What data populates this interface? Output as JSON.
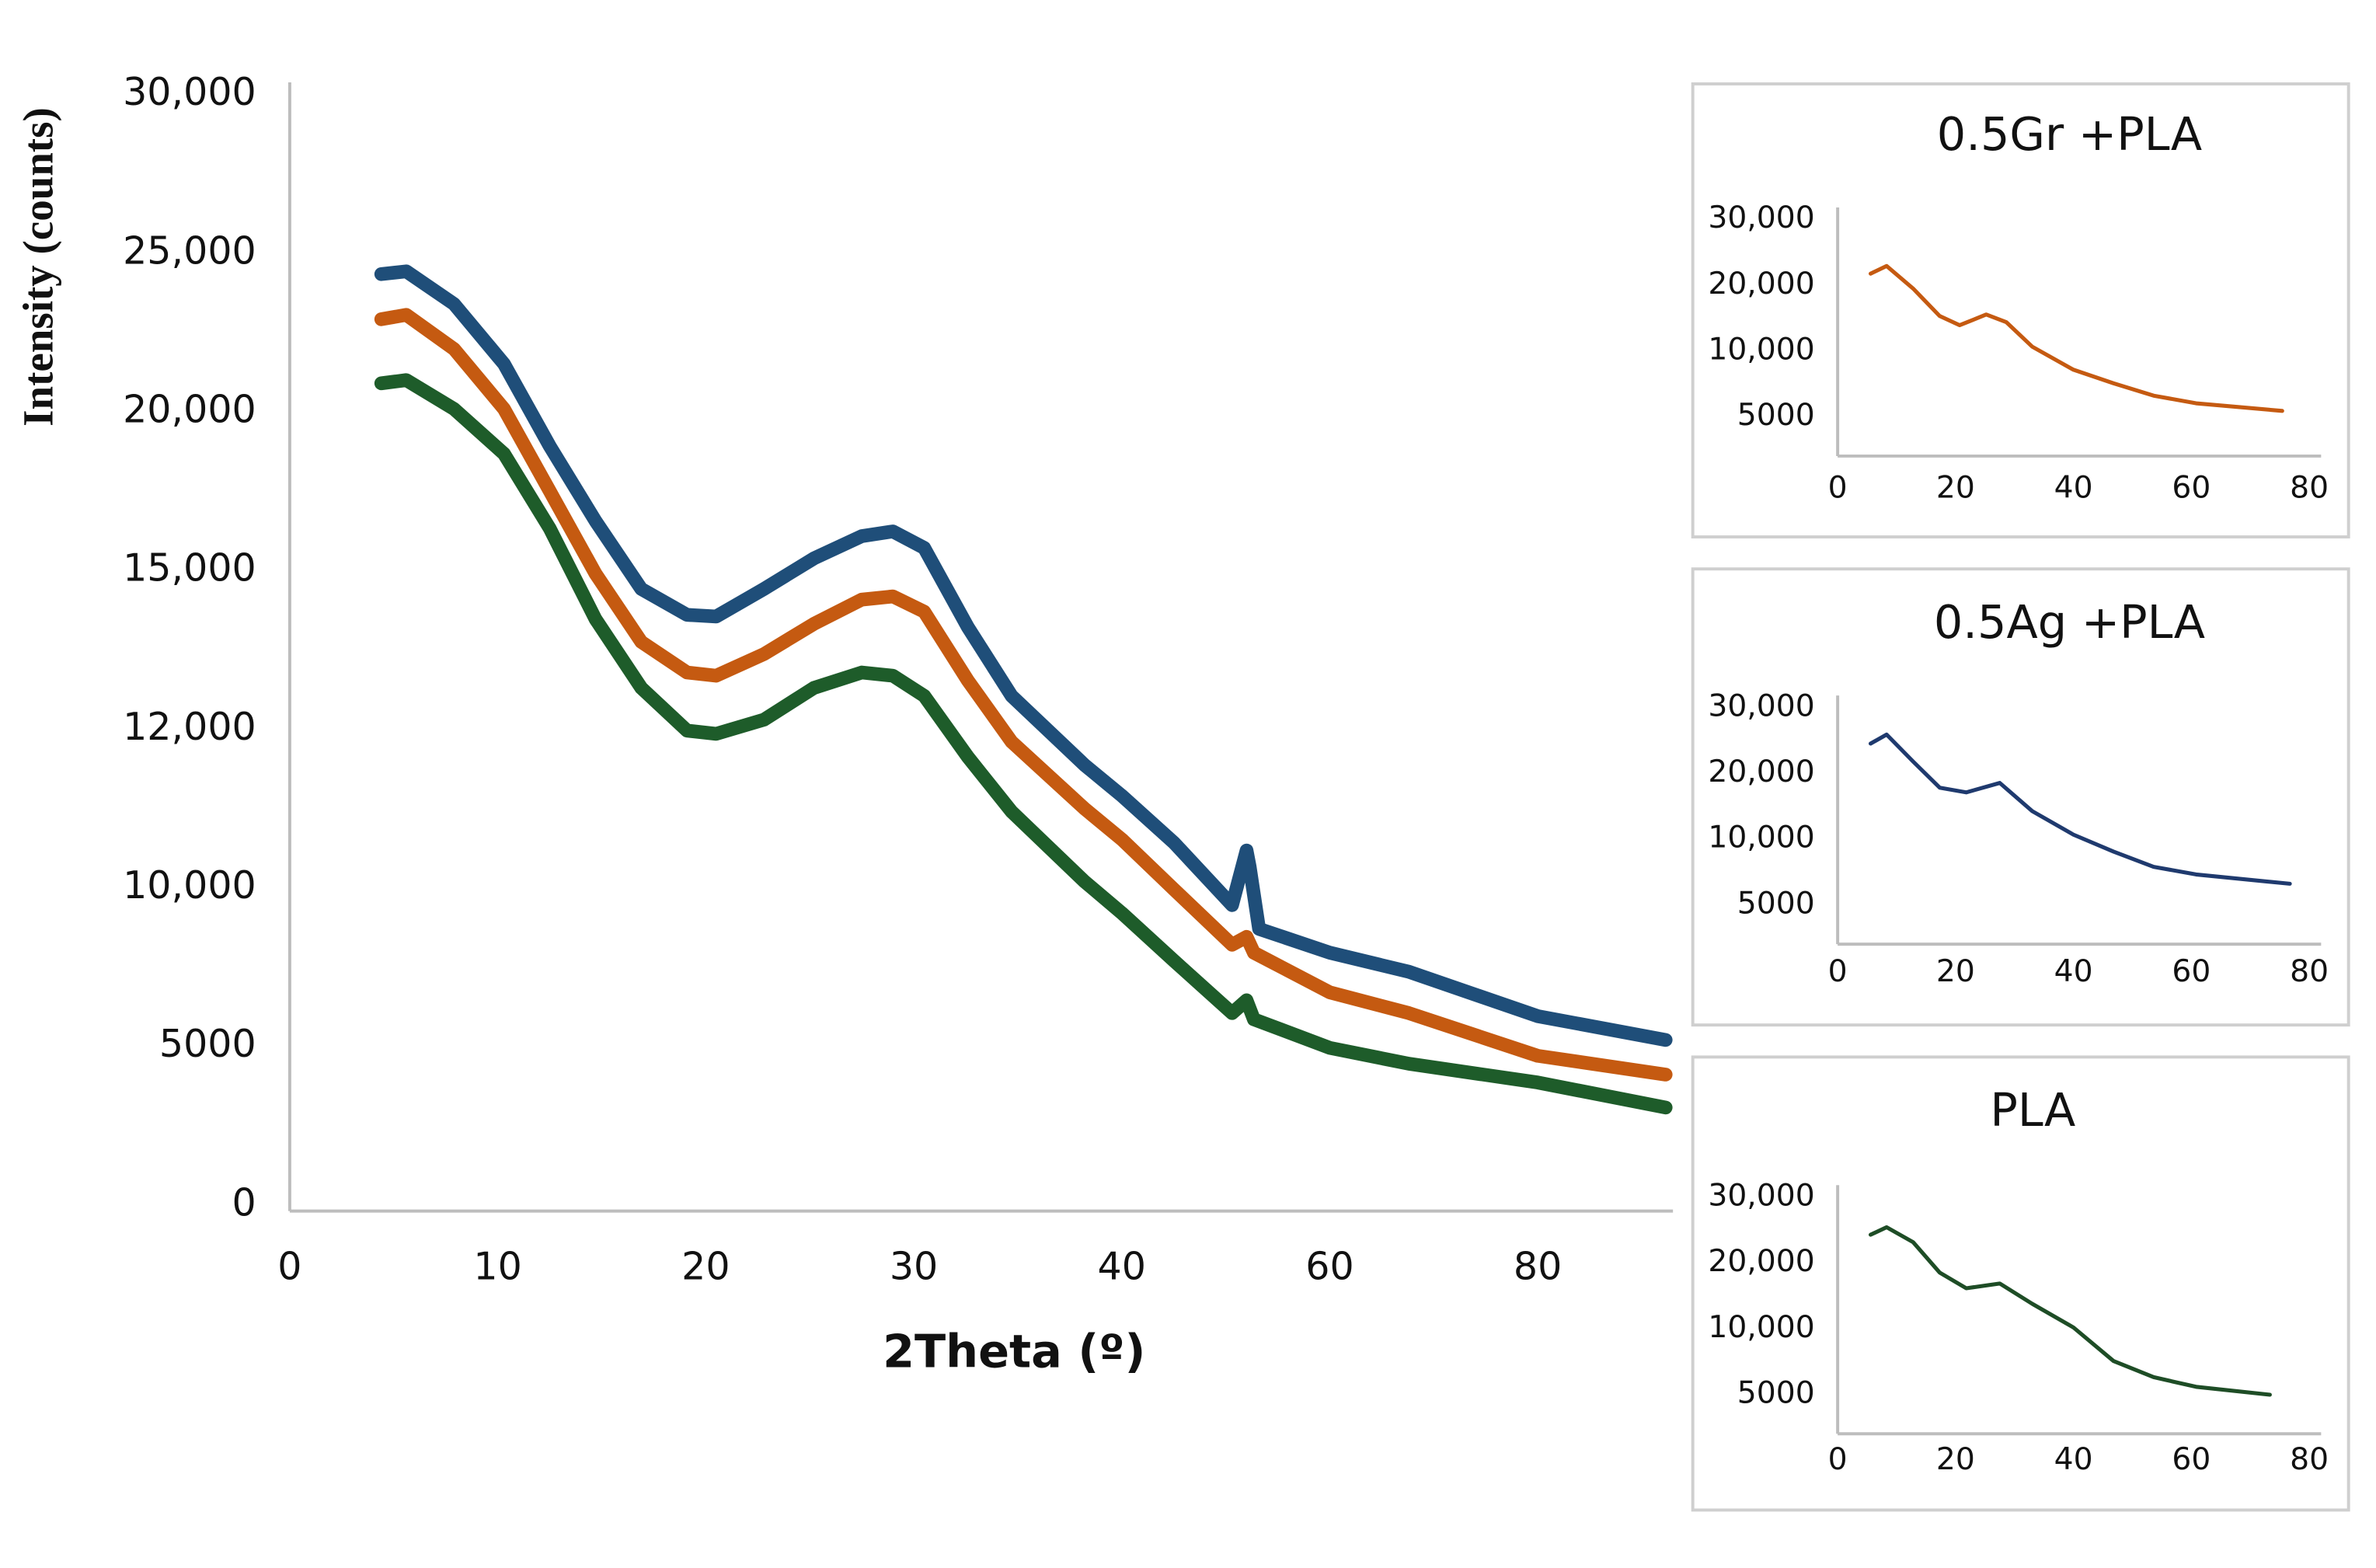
{
  "chart_data": [
    {
      "type": "line",
      "y_label": "Intensity (counts)",
      "x_label": "2Theta (º)",
      "xlim": [
        0,
        93
      ],
      "xticks": [
        0,
        10,
        20,
        30,
        40,
        60,
        80
      ],
      "ylim": [
        0,
        30000
      ],
      "yticks": [
        0,
        5000,
        {
          "value": 10000,
          "label": "10,000"
        },
        {
          "value": 12000,
          "label": "12,000"
        },
        {
          "value": 15000,
          "label": "15,000"
        },
        {
          "value": 20000,
          "label": "20,000"
        },
        {
          "value": 25000,
          "label": "25,000"
        },
        {
          "value": 30000,
          "label": "30,000"
        }
      ],
      "grid": false,
      "series": [
        {
          "color": "#1f4e79",
          "x": [
            4.4,
            5.6,
            7.9,
            10.3,
            12.5,
            14.7,
            16.9,
            19.1,
            20.5,
            22.8,
            25.2,
            27.5,
            29.0,
            30.5,
            32.6,
            34.7,
            38.2,
            40,
            45,
            50.6,
            52,
            52.3,
            53.2,
            60,
            67.6,
            80,
            92.3
          ],
          "values": [
            24340,
            24430,
            23400,
            21510,
            18920,
            16560,
            14650,
            14160,
            14130,
            14650,
            15380,
            16080,
            16230,
            15710,
            13930,
            12630,
            11550,
            11160,
            10570,
            9450,
            10470,
            10270,
            8700,
            7950,
            7350,
            5950,
            5200
          ]
        },
        {
          "color": "#c55a11",
          "x": [
            4.4,
            5.6,
            7.9,
            10.3,
            12.5,
            14.7,
            16.9,
            19.1,
            20.5,
            22.8,
            25.2,
            27.5,
            29.0,
            30.5,
            32.6,
            34.7,
            38.2,
            40,
            45,
            50.6,
            52,
            52.7,
            60,
            67.6,
            80,
            92.3
          ],
          "values": [
            22920,
            23060,
            21980,
            20090,
            17500,
            14940,
            13650,
            13070,
            13010,
            13420,
            13990,
            14450,
            14510,
            14220,
            12920,
            11840,
            11000,
            10610,
            9950,
            8200,
            8450,
            7950,
            6700,
            6050,
            4700,
            4110
          ]
        },
        {
          "color": "#1e5c2a",
          "x": [
            4.4,
            5.6,
            7.9,
            10.3,
            12.5,
            14.7,
            16.9,
            19.1,
            20.5,
            22.8,
            25.2,
            27.5,
            29.0,
            30.5,
            32.6,
            34.7,
            38.2,
            40,
            45,
            50.6,
            52,
            52.7,
            60,
            67.6,
            80,
            92.3
          ],
          "values": [
            20900,
            21000,
            20090,
            18680,
            16320,
            14080,
            12780,
            11980,
            11940,
            12180,
            12780,
            13070,
            13010,
            12630,
            11650,
            10960,
            10080,
            9200,
            7700,
            6050,
            6450,
            5850,
            4950,
            4450,
            3860,
            3070
          ]
        }
      ]
    },
    {
      "type": "line",
      "title": "0.5Gr +PLA",
      "xlim": [
        0,
        82
      ],
      "xticks": [
        0,
        20,
        40,
        60,
        80
      ],
      "ylim": [
        2500,
        30000
      ],
      "yticks": [
        5000,
        {
          "value": 10000,
          "label": "10,000"
        },
        {
          "value": 20000,
          "label": "20,000"
        },
        {
          "value": 30000,
          "label": "30,000"
        }
      ],
      "series": [
        {
          "color": "#c55a11",
          "x": [
            5.6,
            8.3,
            12.8,
            17.3,
            20.7,
            25.2,
            28.6,
            33.0,
            40,
            46.8,
            53.6,
            60.8,
            75.4
          ],
          "values": [
            21800,
            22950,
            19530,
            15350,
            13950,
            15580,
            14420,
            10700,
            8600,
            7560,
            6630,
            6050,
            5470
          ]
        }
      ]
    },
    {
      "type": "line",
      "title": "0.5Ag +PLA",
      "xlim": [
        0,
        82
      ],
      "xticks": [
        0,
        20,
        40,
        60,
        80
      ],
      "ylim": [
        2500,
        30000
      ],
      "yticks": [
        5000,
        {
          "value": 10000,
          "label": "10,000"
        },
        {
          "value": 20000,
          "label": "20,000"
        },
        {
          "value": 30000,
          "label": "30,000"
        }
      ],
      "series": [
        {
          "color": "#1f3a6e",
          "x": [
            5.6,
            8.3,
            12.8,
            17.3,
            21.8,
            27.5,
            33.0,
            40,
            46.8,
            53.6,
            60.8,
            76.7
          ],
          "values": [
            24550,
            25910,
            21820,
            17860,
            17140,
            18570,
            14290,
            10710,
            9070,
            7910,
            7330,
            6630
          ]
        }
      ]
    },
    {
      "type": "line",
      "title": "PLA",
      "xlim": [
        0,
        82
      ],
      "xticks": [
        0,
        20,
        40,
        60,
        80
      ],
      "ylim": [
        2500,
        30000
      ],
      "yticks": [
        5000,
        {
          "value": 10000,
          "label": "10,000"
        },
        {
          "value": 20000,
          "label": "20,000"
        },
        {
          "value": 30000,
          "label": "30,000"
        }
      ],
      "series": [
        {
          "color": "#1e4d26",
          "x": [
            5.6,
            8.3,
            12.8,
            17.3,
            21.8,
            27.5,
            33.0,
            40,
            46.8,
            53.6,
            60.8,
            73.3
          ],
          "values": [
            24320,
            25450,
            23180,
            18570,
            16190,
            16900,
            13810,
            10240,
            7560,
            6340,
            5610,
            5000
          ]
        }
      ]
    }
  ]
}
